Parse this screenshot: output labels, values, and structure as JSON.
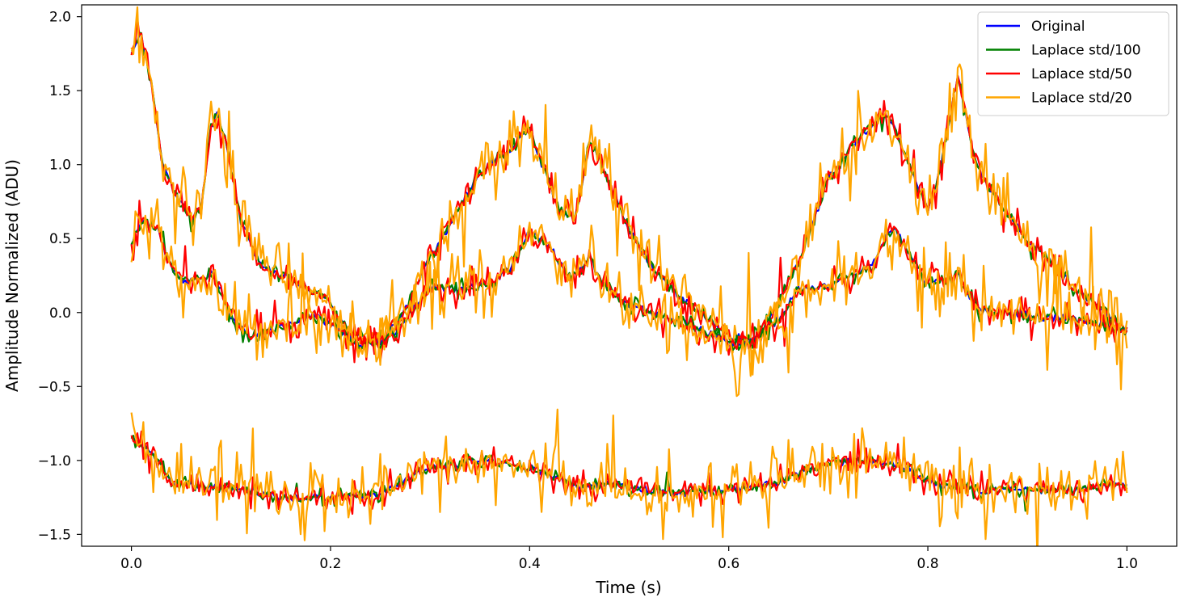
{
  "chart_data": {
    "type": "line",
    "title": "",
    "xlabel": "Time (s)",
    "ylabel": "Amplitude Normalized (ADU)",
    "xlim": [
      -0.05,
      1.05
    ],
    "ylim": [
      -1.58,
      2.08
    ],
    "xticks": [
      0.0,
      0.2,
      0.4,
      0.6,
      0.8,
      1.0
    ],
    "xtick_labels": [
      "0.0",
      "0.2",
      "0.4",
      "0.6",
      "0.8",
      "1.0"
    ],
    "yticks": [
      -1.5,
      -1.0,
      -0.5,
      0.0,
      0.5,
      1.0,
      1.5,
      2.0
    ],
    "ytick_labels": [
      "−1.5",
      "−1.0",
      "−0.5",
      "0.0",
      "0.5",
      "1.0",
      "1.5",
      "2.0"
    ],
    "grid": false,
    "legend_position": "top-right",
    "series": [
      {
        "name": "Original",
        "color": "#0000ff"
      },
      {
        "name": "Laplace std/100",
        "color": "#008000"
      },
      {
        "name": "Laplace std/50",
        "color": "#ff0000"
      },
      {
        "name": "Laplace std/20",
        "color": "#ffa500"
      }
    ],
    "signals": [
      {
        "x": [
          0.0,
          0.01,
          0.02,
          0.03,
          0.045,
          0.06,
          0.07,
          0.08,
          0.087,
          0.095,
          0.11,
          0.13,
          0.16,
          0.19,
          0.2,
          0.22,
          0.25,
          0.27,
          0.29,
          0.32,
          0.35,
          0.38,
          0.4,
          0.41,
          0.43,
          0.445,
          0.46,
          0.47,
          0.5,
          0.53,
          0.56,
          0.6,
          0.625,
          0.64,
          0.67,
          0.7,
          0.72,
          0.74,
          0.76,
          0.775,
          0.79,
          0.8,
          0.81,
          0.83,
          0.845,
          0.86,
          0.9,
          0.95,
          1.0
        ],
        "y": [
          1.75,
          1.88,
          1.55,
          1.05,
          0.78,
          0.64,
          0.7,
          1.25,
          1.35,
          1.15,
          0.62,
          0.32,
          0.22,
          0.12,
          0.05,
          -0.15,
          -0.2,
          -0.05,
          0.25,
          0.6,
          0.95,
          1.1,
          1.25,
          1.05,
          0.68,
          0.62,
          1.15,
          1.05,
          0.55,
          0.25,
          0.05,
          -0.15,
          -0.2,
          -0.05,
          0.35,
          0.9,
          1.1,
          1.25,
          1.35,
          1.1,
          0.85,
          0.7,
          0.9,
          1.6,
          1.1,
          0.85,
          0.5,
          0.15,
          -0.12
        ],
        "noise": 0.028,
        "seed": 11
      },
      {
        "x": [
          0.0,
          0.01,
          0.025,
          0.04,
          0.055,
          0.07,
          0.08,
          0.09,
          0.1,
          0.12,
          0.15,
          0.18,
          0.2,
          0.23,
          0.25,
          0.27,
          0.3,
          0.33,
          0.36,
          0.38,
          0.4,
          0.42,
          0.44,
          0.46,
          0.47,
          0.5,
          0.55,
          0.6,
          0.62,
          0.65,
          0.67,
          0.7,
          0.74,
          0.765,
          0.78,
          0.8,
          0.83,
          0.85,
          0.9,
          0.95,
          1.0
        ],
        "y": [
          0.48,
          0.62,
          0.58,
          0.3,
          0.2,
          0.22,
          0.26,
          0.15,
          -0.05,
          -0.15,
          -0.1,
          -0.02,
          -0.08,
          -0.22,
          -0.2,
          -0.1,
          0.18,
          0.15,
          0.2,
          0.3,
          0.55,
          0.45,
          0.22,
          0.38,
          0.22,
          0.05,
          -0.05,
          -0.2,
          -0.2,
          -0.05,
          0.15,
          0.18,
          0.3,
          0.58,
          0.42,
          0.18,
          0.25,
          0.02,
          -0.02,
          -0.05,
          -0.12
        ],
        "noise": 0.026,
        "seed": 23
      },
      {
        "x": [
          0.0,
          0.02,
          0.04,
          0.07,
          0.1,
          0.15,
          0.2,
          0.25,
          0.3,
          0.35,
          0.4,
          0.45,
          0.48,
          0.52,
          0.55,
          0.6,
          0.65,
          0.7,
          0.75,
          0.78,
          0.8,
          0.85,
          0.9,
          0.95,
          1.0
        ],
        "y": [
          -0.85,
          -0.95,
          -1.15,
          -1.18,
          -1.18,
          -1.25,
          -1.25,
          -1.22,
          -1.05,
          -1.0,
          -1.05,
          -1.18,
          -1.15,
          -1.2,
          -1.22,
          -1.2,
          -1.15,
          -1.02,
          -1.0,
          -1.05,
          -1.15,
          -1.2,
          -1.2,
          -1.2,
          -1.15
        ],
        "noise": 0.024,
        "seed": 37
      }
    ],
    "noise_scale": [
      0.0,
      0.35,
      0.7,
      1.75
    ],
    "samples": 500
  }
}
